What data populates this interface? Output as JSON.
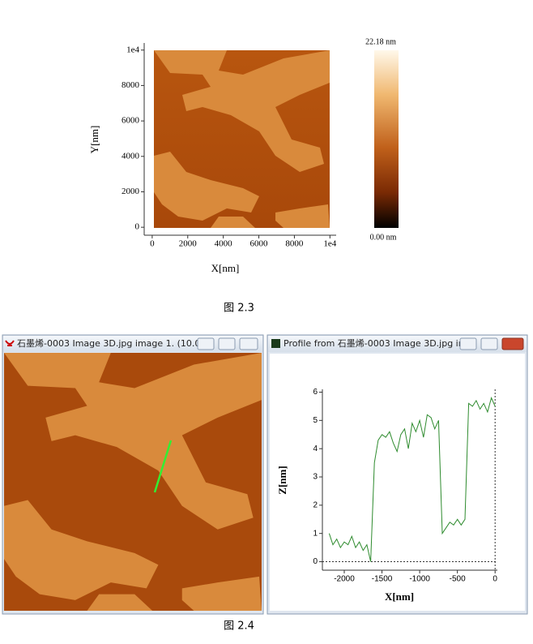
{
  "chart_data": [
    {
      "type": "image",
      "xlabel": "X[nm]",
      "ylabel": "Y[nm]",
      "xlim": [
        -450,
        10350
      ],
      "ylim": [
        -450,
        10400
      ],
      "xticks": [
        0,
        2000,
        4000,
        6000,
        8000,
        {
          "value": 10000,
          "label": "1e4"
        }
      ],
      "yticks": [
        0,
        2000,
        4000,
        6000,
        8000,
        {
          "value": 10000,
          "label": "1e4"
        }
      ],
      "colorbar_labels": [
        "22.18 nm",
        "0.00 nm"
      ]
    },
    {
      "type": "line",
      "xlabel": "X[nm]",
      "ylabel": "Z[nm]",
      "xlim": [
        -2290,
        30
      ],
      "ylim": [
        -0.3,
        6.1
      ],
      "xticks": [
        -2000,
        -1500,
        -1000,
        -500,
        0
      ],
      "yticks": [
        0,
        1,
        2,
        3,
        4,
        5,
        6
      ],
      "series": [
        {
          "color": "#2e8b2e",
          "x": [
            -2200,
            -2150,
            -2100,
            -2050,
            -2000,
            -1950,
            -1900,
            -1850,
            -1800,
            -1750,
            -1700,
            -1650,
            -1600,
            -1550,
            -1500,
            -1450,
            -1400,
            -1350,
            -1300,
            -1250,
            -1200,
            -1150,
            -1100,
            -1050,
            -1000,
            -950,
            -900,
            -850,
            -800,
            -750,
            -700,
            -650,
            -600,
            -550,
            -500,
            -450,
            -400,
            -350,
            -300,
            -250,
            -200,
            -150,
            -100,
            -50,
            0
          ],
          "values": [
            1.0,
            0.6,
            0.8,
            0.5,
            0.7,
            0.6,
            0.9,
            0.5,
            0.7,
            0.4,
            0.6,
            0.0,
            3.5,
            4.3,
            4.5,
            4.4,
            4.6,
            4.2,
            3.9,
            4.5,
            4.7,
            4.0,
            4.9,
            4.6,
            5.0,
            4.4,
            5.2,
            5.1,
            4.7,
            5.0,
            1.0,
            1.2,
            1.4,
            1.3,
            1.5,
            1.3,
            1.5,
            5.6,
            5.5,
            5.7,
            5.4,
            5.6,
            5.3,
            5.8,
            5.5
          ]
        }
      ]
    }
  ],
  "captions": [
    "图 2.3",
    "图 2.4"
  ],
  "windows": [
    "石墨烯-0003 Image 3D.jpg image 1. (10.0...",
    "Profile from 石墨烯-0003 Image 3D.jpg im..."
  ]
}
